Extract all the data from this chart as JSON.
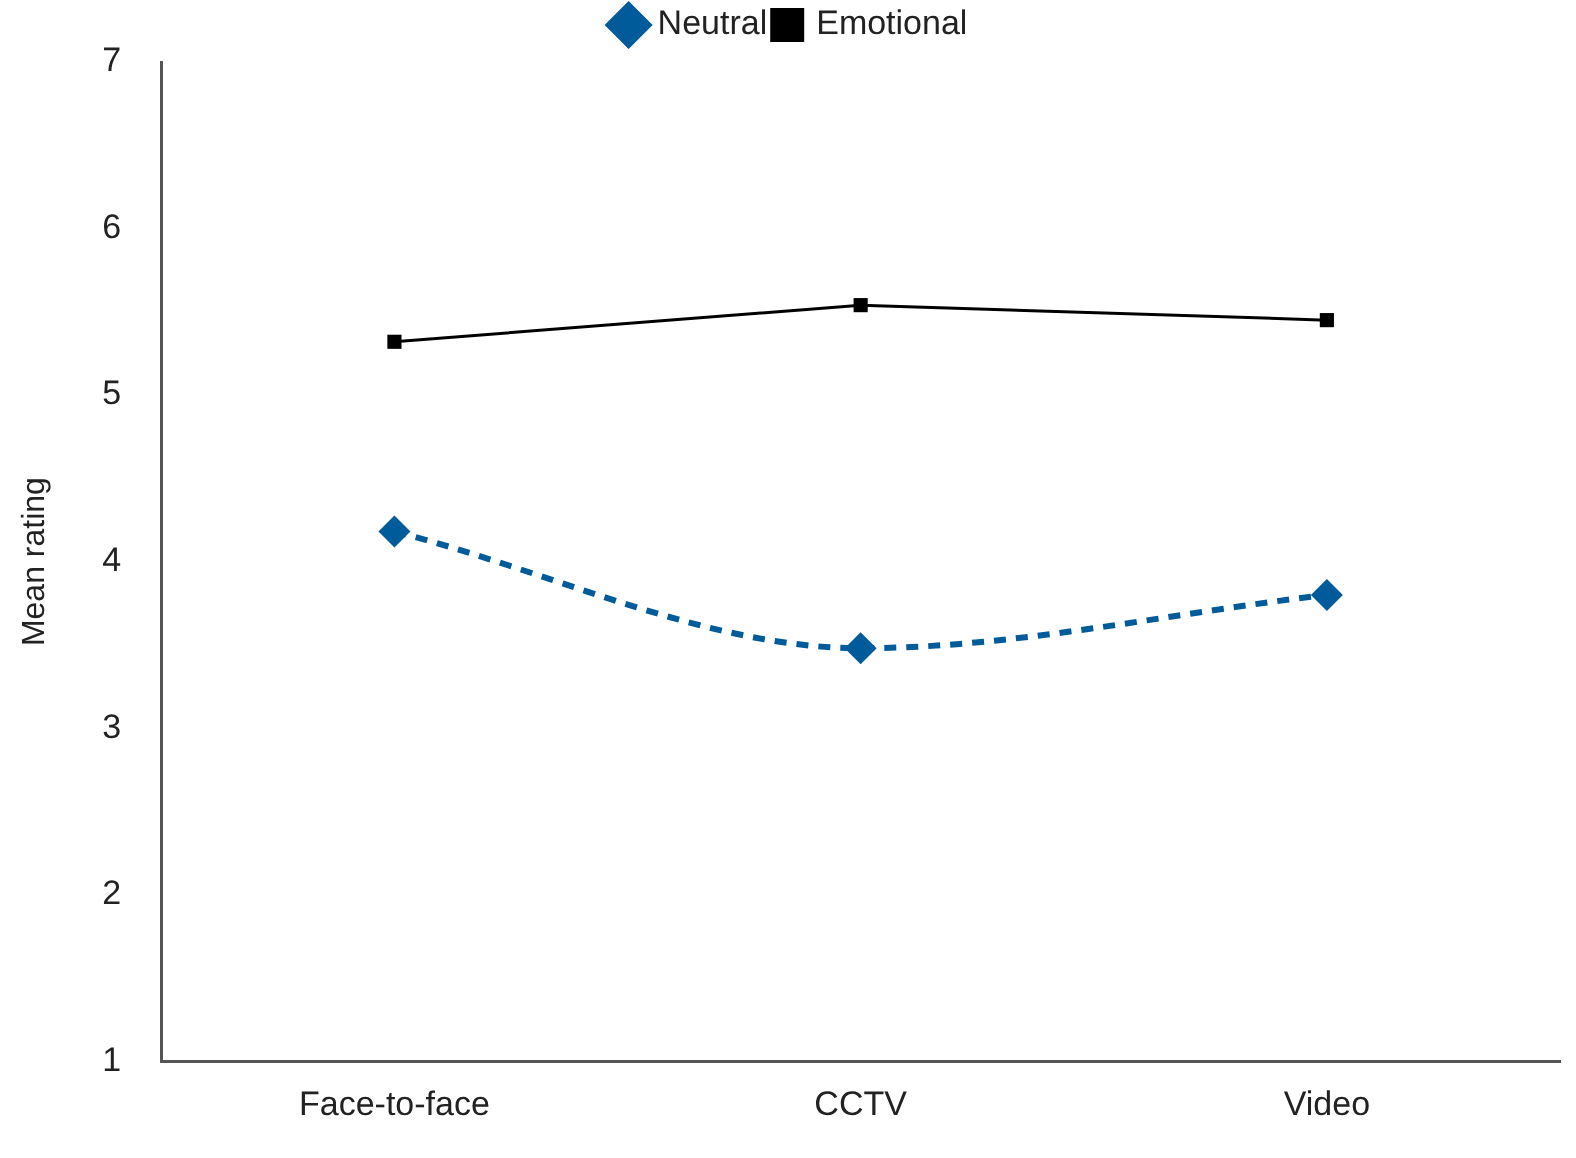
{
  "chart_data": {
    "type": "line",
    "ylabel": "Mean rating",
    "categories": [
      "Face-to-face",
      "CCTV",
      "Video"
    ],
    "series": [
      {
        "name": "Neutral",
        "color": "#005b9a",
        "values": [
          4.18,
          3.48,
          3.8
        ],
        "marker": "diamond",
        "line_style": "dashed"
      },
      {
        "name": "Emotional",
        "color": "#000000",
        "values": [
          5.32,
          5.54,
          5.45
        ],
        "marker": "square",
        "line_style": "solid"
      }
    ],
    "ylim": [
      1,
      7
    ],
    "yticks": [
      1,
      2,
      3,
      4,
      5,
      6,
      7
    ],
    "grid": false,
    "legend": "top"
  }
}
